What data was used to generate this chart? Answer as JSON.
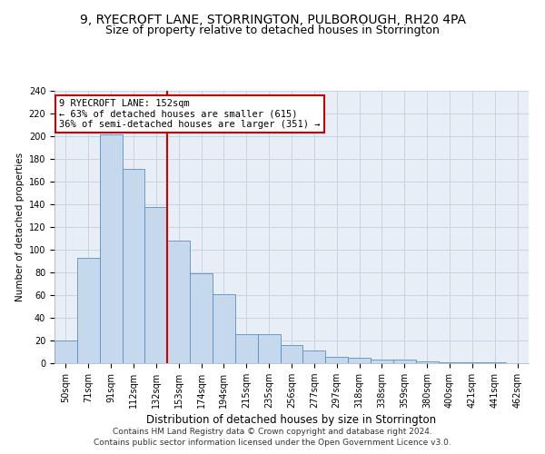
{
  "title": "9, RYECROFT LANE, STORRINGTON, PULBOROUGH, RH20 4PA",
  "subtitle": "Size of property relative to detached houses in Storrington",
  "xlabel": "Distribution of detached houses by size in Storrington",
  "ylabel": "Number of detached properties",
  "categories": [
    "50sqm",
    "71sqm",
    "91sqm",
    "112sqm",
    "132sqm",
    "153sqm",
    "174sqm",
    "194sqm",
    "215sqm",
    "235sqm",
    "256sqm",
    "277sqm",
    "297sqm",
    "318sqm",
    "338sqm",
    "359sqm",
    "380sqm",
    "400sqm",
    "421sqm",
    "441sqm",
    "462sqm"
  ],
  "values": [
    20,
    93,
    202,
    171,
    138,
    108,
    79,
    61,
    26,
    26,
    16,
    11,
    6,
    5,
    3,
    3,
    2,
    1,
    1,
    1,
    0
  ],
  "bar_color": "#c6d9ec",
  "bar_edge_color": "#5a8fc0",
  "reference_line_color": "#cc0000",
  "annotation_text": "9 RYECROFT LANE: 152sqm\n← 63% of detached houses are smaller (615)\n36% of semi-detached houses are larger (351) →",
  "annotation_box_color": "#cc0000",
  "ylim": [
    0,
    240
  ],
  "yticks": [
    0,
    20,
    40,
    60,
    80,
    100,
    120,
    140,
    160,
    180,
    200,
    220,
    240
  ],
  "footer_line1": "Contains HM Land Registry data © Crown copyright and database right 2024.",
  "footer_line2": "Contains public sector information licensed under the Open Government Licence v3.0.",
  "bg_color": "#ffffff",
  "plot_bg_color": "#e8eef5",
  "grid_color": "#c8d4e4",
  "title_fontsize": 10,
  "subtitle_fontsize": 9,
  "xlabel_fontsize": 8.5,
  "ylabel_fontsize": 7.5,
  "tick_fontsize": 7,
  "annotation_fontsize": 7.5,
  "footer_fontsize": 6.5
}
